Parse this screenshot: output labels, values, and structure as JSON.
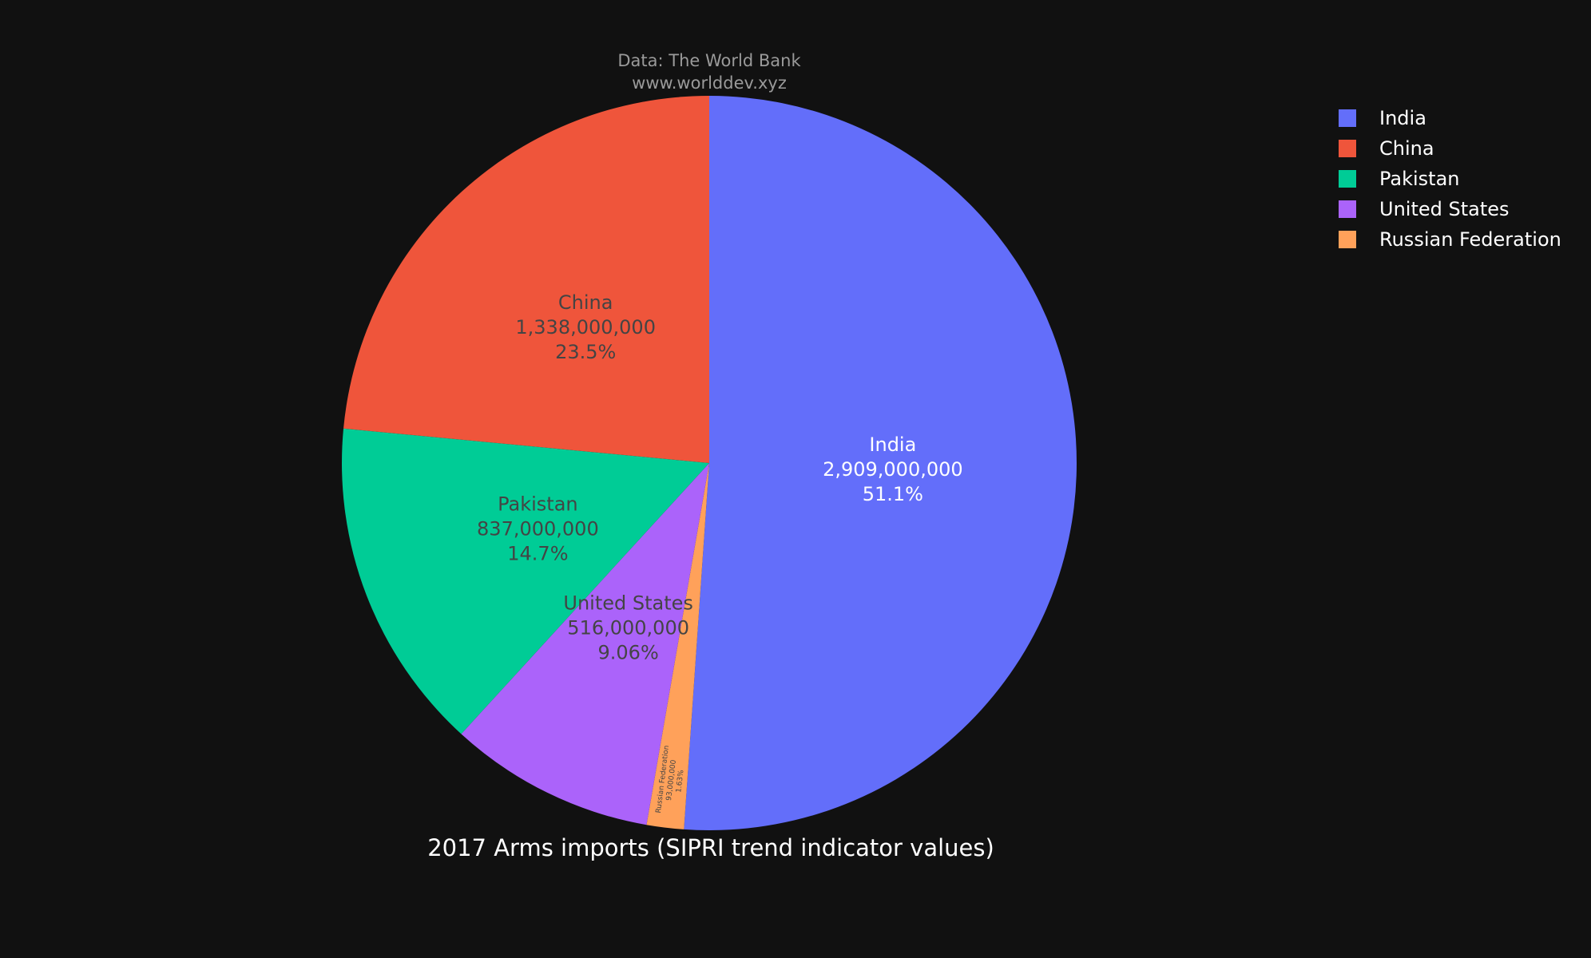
{
  "source": {
    "line1": "Data: The World Bank",
    "line2": "www.worlddev.xyz"
  },
  "chart_data": {
    "type": "pie",
    "title": "2017 Arms imports (SIPRI trend indicator values)",
    "legend_position": "top-right",
    "direction": "clockwise",
    "start": "top",
    "slices": [
      {
        "label": "India",
        "value": 2909000000,
        "value_text": "2,909,000,000",
        "percent_text": "51.1%",
        "color": "#636efa",
        "text_color": "#ffffff"
      },
      {
        "label": "Russian Federation",
        "value": 93000000,
        "value_text": "93,000,000",
        "percent_text": "1.63%",
        "color": "#ffa15a",
        "text_color": "#444444"
      },
      {
        "label": "United States",
        "value": 516000000,
        "value_text": "516,000,000",
        "percent_text": "9.06%",
        "color": "#ab63fa",
        "text_color": "#444444"
      },
      {
        "label": "Pakistan",
        "value": 837000000,
        "value_text": "837,000,000",
        "percent_text": "14.7%",
        "color": "#00cc96",
        "text_color": "#444444"
      },
      {
        "label": "China",
        "value": 1338000000,
        "value_text": "1,338,000,000",
        "percent_text": "23.5%",
        "color": "#ef553b",
        "text_color": "#444444"
      }
    ],
    "legend": [
      {
        "label": "India",
        "color": "#636efa"
      },
      {
        "label": "China",
        "color": "#ef553b"
      },
      {
        "label": "Pakistan",
        "color": "#00cc96"
      },
      {
        "label": "United States",
        "color": "#ab63fa"
      },
      {
        "label": "Russian Federation",
        "color": "#ffa15a"
      }
    ]
  }
}
